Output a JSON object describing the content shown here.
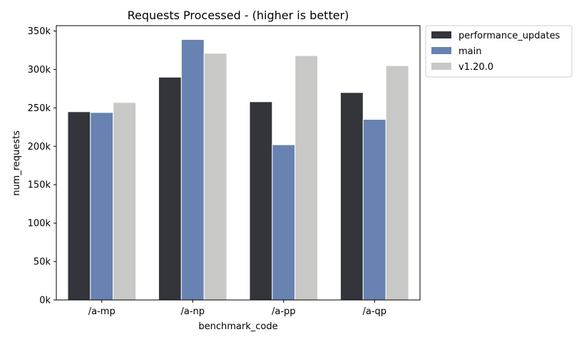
{
  "chart_data": {
    "type": "bar",
    "title": "Requests Processed - (higher is better)",
    "xlabel": "benchmark_code",
    "ylabel": "num_requests",
    "categories": [
      "/a-mp",
      "/a-np",
      "/a-pp",
      "/a-qp"
    ],
    "ylim": [
      0,
      357000
    ],
    "yticks": [
      0,
      50000,
      100000,
      150000,
      200000,
      250000,
      300000,
      350000
    ],
    "ytick_labels": [
      "0k",
      "50k",
      "100k",
      "150k",
      "200k",
      "250k",
      "300k",
      "350k"
    ],
    "grid": false,
    "legend_position": "outside top-right",
    "series": [
      {
        "name": "performance_updates",
        "color": "#33353b",
        "values": [
          245000,
          290000,
          258000,
          270000
        ]
      },
      {
        "name": "main",
        "color": "#6882b1",
        "values": [
          244000,
          339000,
          202000,
          235000
        ]
      },
      {
        "name": "v1.20.0",
        "color": "#c8c8c6",
        "values": [
          257000,
          321000,
          318000,
          305000
        ]
      }
    ]
  }
}
